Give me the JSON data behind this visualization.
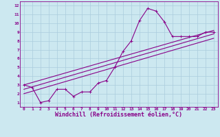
{
  "bg_color": "#cce8f0",
  "grid_color": "#aaccdd",
  "line_color": "#880088",
  "spine_color": "#880088",
  "tick_color": "#880088",
  "xlim": [
    -0.5,
    23.5
  ],
  "ylim": [
    0.5,
    12.5
  ],
  "xticks": [
    0,
    1,
    2,
    3,
    4,
    5,
    6,
    7,
    8,
    9,
    10,
    11,
    12,
    13,
    14,
    15,
    16,
    17,
    18,
    19,
    20,
    21,
    22,
    23
  ],
  "yticks": [
    1,
    2,
    3,
    4,
    5,
    6,
    7,
    8,
    9,
    10,
    11,
    12
  ],
  "xlabel": "Windchill (Refroidissement éolien,°C)",
  "tick_fontsize": 4.5,
  "xlabel_fontsize": 6.0,
  "main_x": [
    0,
    1,
    2,
    3,
    4,
    5,
    6,
    7,
    8,
    9,
    10,
    11,
    12,
    13,
    14,
    15,
    16,
    17,
    18,
    19,
    20,
    21,
    22,
    23
  ],
  "main_y": [
    3.0,
    2.7,
    1.0,
    1.2,
    2.5,
    2.5,
    1.7,
    2.2,
    2.2,
    3.2,
    3.5,
    5.0,
    6.8,
    8.0,
    10.3,
    11.7,
    11.4,
    10.2,
    8.5,
    8.5,
    8.5,
    8.5,
    9.0,
    9.0
  ],
  "trend1_x": [
    0,
    23
  ],
  "trend1_y": [
    3.0,
    9.2
  ],
  "trend2_x": [
    0,
    23
  ],
  "trend2_y": [
    2.5,
    8.8
  ],
  "trend3_x": [
    0,
    23
  ],
  "trend3_y": [
    2.0,
    8.3
  ],
  "linewidth": 0.8,
  "marker_size": 2.5,
  "bottom_bar_color": "#880088"
}
